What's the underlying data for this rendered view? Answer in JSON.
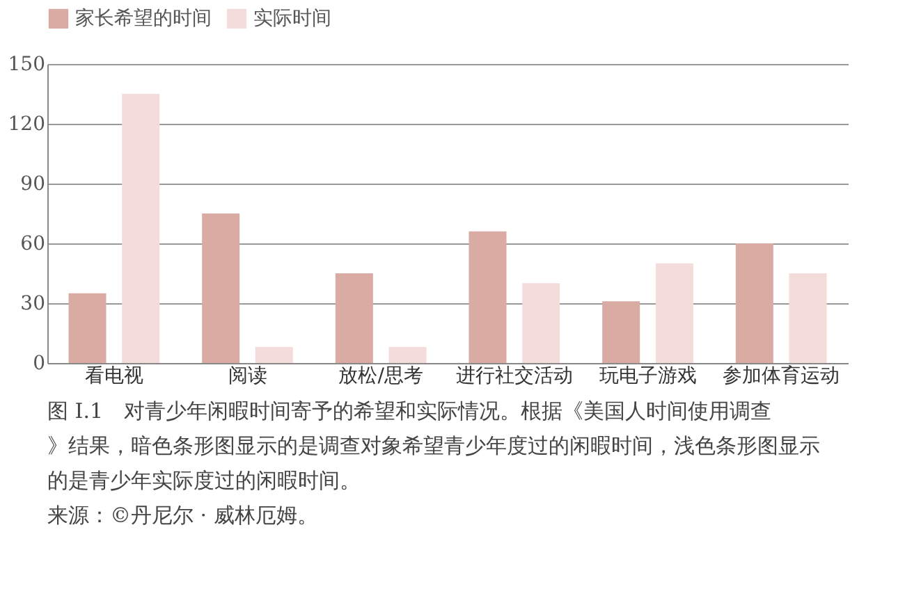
{
  "chart_data": {
    "type": "bar",
    "categories": [
      "看电视",
      "阅读",
      "放松/思考",
      "进行社交活动",
      "玩电子游戏",
      "参加体育运动"
    ],
    "series": [
      {
        "name": "家长希望的时间",
        "color": "#d9aba3",
        "values": [
          35,
          75,
          45,
          66,
          31,
          60
        ]
      },
      {
        "name": "实际时间",
        "color": "#f3dcd9",
        "values": [
          135,
          8,
          8,
          40,
          50,
          45
        ]
      }
    ],
    "ylim": [
      0,
      150
    ],
    "yticks": [
      0,
      30,
      60,
      90,
      120,
      150
    ],
    "grid": "y",
    "legend": "top",
    "annotations": [
      "图 I.1　对青少年闲暇时间寄予的希望和实际情况。根据《美国人时间使用调查》结果，暗色条形图显示的是调查对象希望青少年度过的闲暇时间，浅色条形图显示的是青少年实际度过的闲暇时间。",
      "来源：©丹尼尔 · 威林厄姆。"
    ]
  }
}
